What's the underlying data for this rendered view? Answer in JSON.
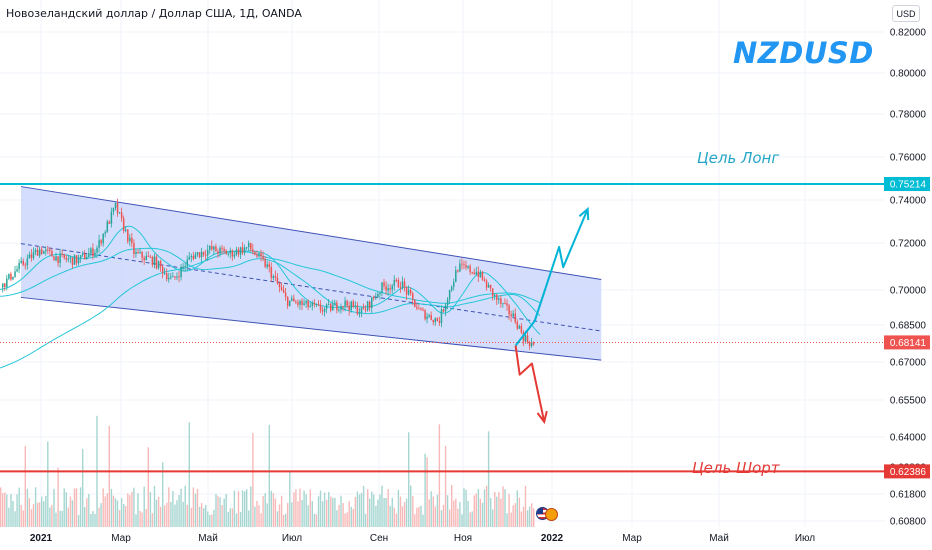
{
  "header": {
    "symbol_title": "Новозеландский доллар / Доллар США, 1Д, OANDA",
    "currency": "USD",
    "big_title": "NZDUSD"
  },
  "annotations": {
    "long_target": "Цель Лонг",
    "short_target": "Цель Шорт"
  },
  "colors": {
    "up": "#26a69a",
    "down": "#ef5350",
    "channel_fill": "#c5d3fb",
    "channel_line": "#3f51b5",
    "long_line": "#00bcd4",
    "short_line": "#e53935",
    "current_price": "#ef5350",
    "ma": "#26c6da",
    "title": "#2196f3"
  },
  "chart_data": {
    "type": "line",
    "title": "Новозеландский доллар / Доллар США, 1Д, OANDA",
    "xlabel": "",
    "ylabel": "",
    "x_ticks": [
      "2021",
      "Мар",
      "Май",
      "Июл",
      "Сен",
      "Ноя",
      "2022",
      "Мар",
      "Май",
      "Июл"
    ],
    "y_ticks": [
      "0.82000",
      "0.80000",
      "0.78000",
      "0.76000",
      "0.74000",
      "0.72000",
      "0.70000",
      "0.68500",
      "0.67000",
      "0.65500",
      "0.64000",
      "0.62800",
      "0.61800",
      "0.60800"
    ],
    "price_labels": [
      {
        "value": "0.75214",
        "color": "#00bcd4"
      },
      {
        "value": "0.68141",
        "color": "#ef5350"
      },
      {
        "value": "0.62386",
        "color": "#e53935"
      }
    ],
    "levels": {
      "long_target": 0.75214,
      "current": 0.68141,
      "short_target": 0.62386
    },
    "channel": {
      "upper": {
        "start": [
          "2020-12-18",
          0.751
        ],
        "end": [
          "2022-02-18",
          0.7095
        ]
      },
      "lower": {
        "start": [
          "2020-12-18",
          0.7015
        ],
        "end": [
          "2022-02-18",
          0.6735
        ]
      },
      "median": {
        "start": [
          "2020-12-18",
          0.7255
        ],
        "end": [
          "2022-02-18",
          0.6865
        ]
      }
    },
    "forecast_long": [
      [
        "2021-12-17",
        0.68
      ],
      [
        "2021-12-31",
        0.691
      ],
      [
        "2022-01-18",
        0.724
      ],
      [
        "2022-01-21",
        0.715
      ],
      [
        "2022-02-08",
        0.741
      ]
    ],
    "forecast_short": [
      [
        "2021-12-17",
        0.68
      ],
      [
        "2021-12-20",
        0.667
      ],
      [
        "2021-12-29",
        0.672
      ],
      [
        "2022-01-07",
        0.646
      ]
    ],
    "price_path": [
      [
        "2020-12-01",
        0.705
      ],
      [
        "2020-12-16",
        0.715
      ],
      [
        "2020-12-31",
        0.723
      ],
      [
        "2021-01-14",
        0.719
      ],
      [
        "2021-01-28",
        0.718
      ],
      [
        "2021-02-11",
        0.723
      ],
      [
        "2021-02-25",
        0.742
      ],
      [
        "2021-03-11",
        0.721
      ],
      [
        "2021-03-25",
        0.718
      ],
      [
        "2021-04-08",
        0.709
      ],
      [
        "2021-04-22",
        0.72
      ],
      [
        "2021-05-06",
        0.723
      ],
      [
        "2021-05-20",
        0.721
      ],
      [
        "2021-06-03",
        0.724
      ],
      [
        "2021-06-17",
        0.715
      ],
      [
        "2021-07-01",
        0.7
      ],
      [
        "2021-07-15",
        0.698
      ],
      [
        "2021-07-29",
        0.696
      ],
      [
        "2021-08-12",
        0.699
      ],
      [
        "2021-08-26",
        0.695
      ],
      [
        "2021-09-09",
        0.706
      ],
      [
        "2021-09-23",
        0.708
      ],
      [
        "2021-10-07",
        0.695
      ],
      [
        "2021-10-21",
        0.691
      ],
      [
        "2021-11-04",
        0.715
      ],
      [
        "2021-11-18",
        0.713
      ],
      [
        "2021-12-02",
        0.701
      ],
      [
        "2021-12-16",
        0.692
      ],
      [
        "2021-12-22",
        0.684
      ],
      [
        "2021-12-30",
        0.68
      ]
    ]
  }
}
